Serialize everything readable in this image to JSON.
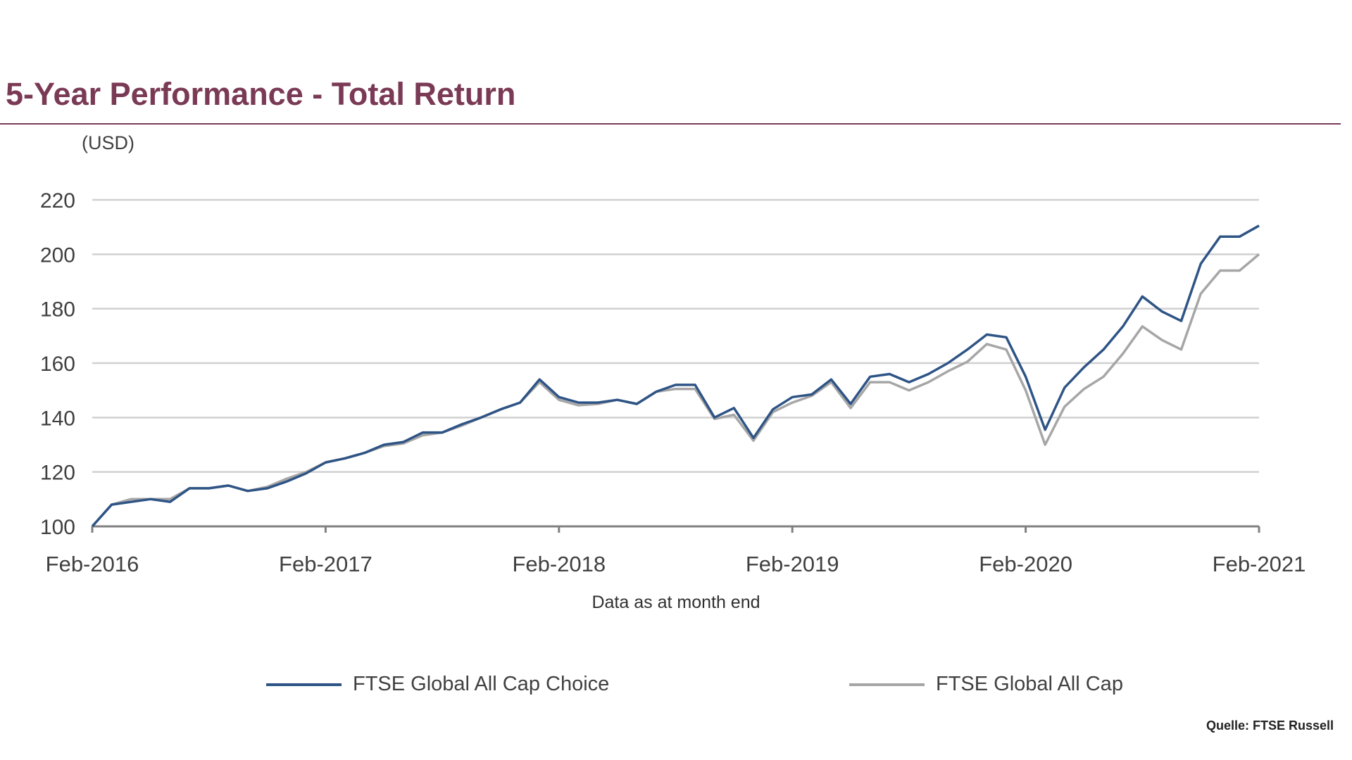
{
  "title": "5-Year Performance - Total Return",
  "source": "Quelle: FTSE Russell",
  "colors": {
    "title": "#7a3a55",
    "choice": "#2e5486",
    "allcap": "#a6a6a6",
    "grid": "#d0d0d0",
    "axis": "#808080"
  },
  "chart_data": {
    "type": "line",
    "ylabel": "(USD)",
    "xlabel": "Data as at month end",
    "ylim": [
      100,
      220
    ],
    "yticks": [
      100,
      120,
      140,
      160,
      180,
      200,
      220
    ],
    "xticks": [
      "Feb-2016",
      "Feb-2017",
      "Feb-2018",
      "Feb-2019",
      "Feb-2020",
      "Feb-2021"
    ],
    "grid": true,
    "legend_position": "bottom",
    "x": [
      "Feb-2016",
      "Mar-2016",
      "Apr-2016",
      "May-2016",
      "Jun-2016",
      "Jul-2016",
      "Aug-2016",
      "Sep-2016",
      "Oct-2016",
      "Nov-2016",
      "Dec-2016",
      "Jan-2017",
      "Feb-2017",
      "Mar-2017",
      "Apr-2017",
      "May-2017",
      "Jun-2017",
      "Jul-2017",
      "Aug-2017",
      "Sep-2017",
      "Oct-2017",
      "Nov-2017",
      "Dec-2017",
      "Jan-2018",
      "Feb-2018",
      "Mar-2018",
      "Apr-2018",
      "May-2018",
      "Jun-2018",
      "Jul-2018",
      "Aug-2018",
      "Sep-2018",
      "Oct-2018",
      "Nov-2018",
      "Dec-2018",
      "Jan-2019",
      "Feb-2019",
      "Mar-2019",
      "Apr-2019",
      "May-2019",
      "Jun-2019",
      "Jul-2019",
      "Aug-2019",
      "Sep-2019",
      "Oct-2019",
      "Nov-2019",
      "Dec-2019",
      "Jan-2020",
      "Feb-2020",
      "Mar-2020",
      "Apr-2020",
      "May-2020",
      "Jun-2020",
      "Jul-2020",
      "Aug-2020",
      "Sep-2020",
      "Oct-2020",
      "Nov-2020",
      "Dec-2020",
      "Jan-2021",
      "Feb-2021"
    ],
    "series": [
      {
        "name": "FTSE Global All Cap Choice",
        "values": [
          100,
          108,
          109,
          110,
          109,
          114,
          114,
          115,
          113,
          114,
          116.5,
          119.5,
          123.5,
          125,
          127,
          130,
          131,
          134.5,
          134.5,
          137.5,
          140,
          143,
          145.5,
          154,
          147.5,
          145.5,
          145.5,
          146.5,
          145,
          149.5,
          152,
          152,
          140,
          143.5,
          132.5,
          143,
          147.5,
          148.5,
          154,
          145,
          155,
          156,
          153,
          156,
          160,
          165,
          170.5,
          169.5,
          155,
          135.5,
          151,
          158.5,
          165,
          173.5,
          184.5,
          179,
          175.5,
          196.5,
          206.5,
          206.5,
          210.5
        ]
      },
      {
        "name": "FTSE Global All Cap",
        "values": [
          100,
          108,
          110,
          110,
          110,
          114,
          114,
          115,
          113,
          114.5,
          117.5,
          120,
          123.5,
          125,
          127,
          129.5,
          130.5,
          133.5,
          134.5,
          137,
          140,
          143,
          145.5,
          153,
          146.5,
          144.5,
          145,
          146.5,
          145,
          149.5,
          150.5,
          150.5,
          139.5,
          141,
          131.5,
          142,
          145.5,
          148,
          153,
          143.5,
          153,
          153,
          150,
          153,
          157,
          160.5,
          167,
          165,
          150,
          130,
          144,
          150.5,
          155,
          163.5,
          173.5,
          168.5,
          165,
          185.5,
          194,
          194,
          200
        ]
      }
    ]
  }
}
